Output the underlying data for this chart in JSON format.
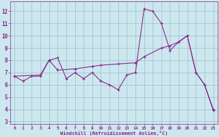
{
  "xlabel": "Windchill (Refroidissement éolien,°C)",
  "bg_color": "#cce8ee",
  "line_color": "#882288",
  "grid_color": "#99bbcc",
  "xlim": [
    -0.5,
    23.5
  ],
  "ylim": [
    2.8,
    12.8
  ],
  "yticks": [
    3,
    4,
    5,
    6,
    7,
    8,
    9,
    10,
    11,
    12
  ],
  "xticks": [
    0,
    1,
    2,
    3,
    4,
    5,
    6,
    7,
    8,
    9,
    10,
    11,
    12,
    13,
    14,
    15,
    16,
    17,
    18,
    19,
    20,
    21,
    22,
    23
  ],
  "line1_x": [
    0,
    1,
    2,
    3,
    4,
    5,
    6,
    7,
    8,
    9,
    10,
    11,
    12,
    13,
    14,
    15,
    16,
    17,
    18,
    19,
    20,
    21,
    22,
    23
  ],
  "line1_y": [
    6.7,
    6.3,
    6.7,
    6.7,
    8.0,
    8.2,
    6.5,
    7.0,
    6.5,
    7.0,
    6.3,
    6.0,
    5.6,
    6.8,
    7.0,
    12.2,
    12.0,
    11.0,
    8.8,
    9.5,
    10.0,
    7.0,
    6.0,
    3.9
  ],
  "line2_x": [
    0,
    3,
    4,
    5,
    7,
    9,
    10,
    12,
    14,
    15,
    17,
    18,
    19,
    20,
    21,
    22,
    23
  ],
  "line2_y": [
    6.7,
    6.8,
    8.0,
    7.2,
    7.3,
    7.5,
    7.6,
    7.7,
    7.8,
    8.3,
    9.0,
    9.2,
    9.5,
    10.0,
    7.0,
    6.0,
    4.0
  ]
}
